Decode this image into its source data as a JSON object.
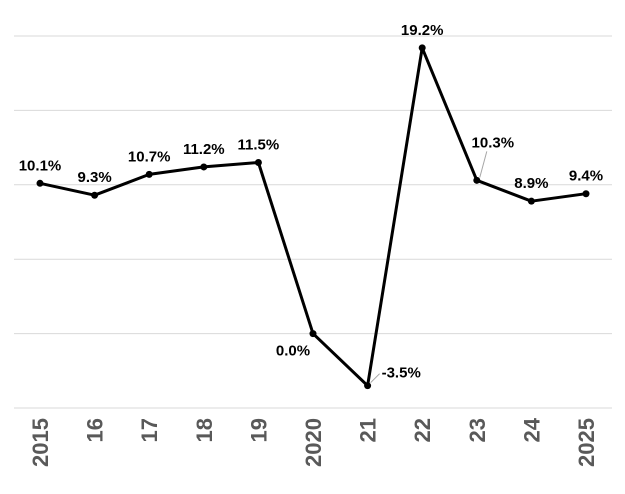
{
  "chart_data": {
    "type": "line",
    "categories": [
      "2015",
      "16",
      "17",
      "18",
      "19",
      "2020",
      "21",
      "22",
      "23",
      "24",
      "2025"
    ],
    "series": [
      {
        "values": [
          10.1,
          9.3,
          10.7,
          11.2,
          11.5,
          0.0,
          -3.5,
          19.2,
          10.3,
          8.9,
          9.4
        ],
        "labels": [
          "10.1%",
          "9.3%",
          "10.7%",
          "11.2%",
          "11.5%",
          "0.0%",
          "-3.5%",
          "19.2%",
          "10.3%",
          "8.9%",
          "9.4%"
        ]
      }
    ],
    "ylim": [
      -5,
      20
    ],
    "grid": true,
    "line_color": "#000000",
    "tick_color": "#595959",
    "grid_color": "#d9d9d9"
  }
}
